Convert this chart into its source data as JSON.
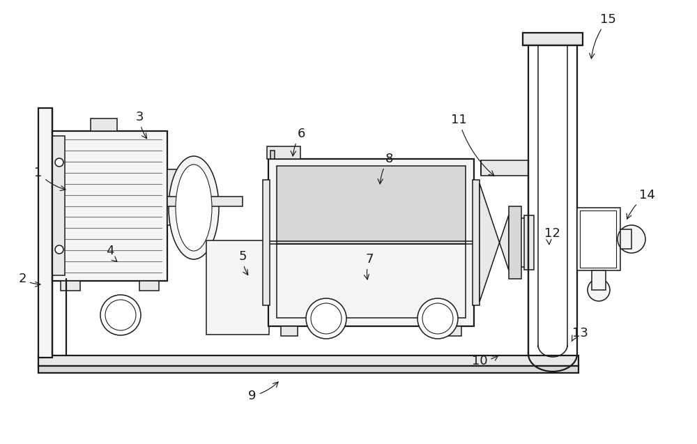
{
  "bg_color": "#ffffff",
  "lc": "#1a1a1a",
  "fc_light": "#f5f5f5",
  "fc_mid": "#e8e8e8",
  "fc_dark": "#d8d8d8",
  "figsize": [
    10.0,
    6.37
  ],
  "dpi": 100,
  "lw": 1.1,
  "lw2": 1.6,
  "labels": [
    [
      "1",
      55,
      248,
      98,
      273
    ],
    [
      "2",
      32,
      400,
      62,
      408
    ],
    [
      "3",
      200,
      168,
      213,
      202
    ],
    [
      "4",
      158,
      360,
      171,
      378
    ],
    [
      "5",
      348,
      368,
      358,
      398
    ],
    [
      "6",
      432,
      192,
      420,
      228
    ],
    [
      "7",
      530,
      372,
      528,
      405
    ],
    [
      "8",
      558,
      228,
      545,
      268
    ],
    [
      "9",
      362,
      568,
      402,
      545
    ],
    [
      "10",
      688,
      518,
      718,
      508
    ],
    [
      "11",
      658,
      172,
      712,
      255
    ],
    [
      "12",
      792,
      335,
      788,
      352
    ],
    [
      "13",
      832,
      478,
      820,
      490
    ],
    [
      "14",
      928,
      280,
      898,
      318
    ],
    [
      "15",
      872,
      28,
      848,
      88
    ]
  ]
}
